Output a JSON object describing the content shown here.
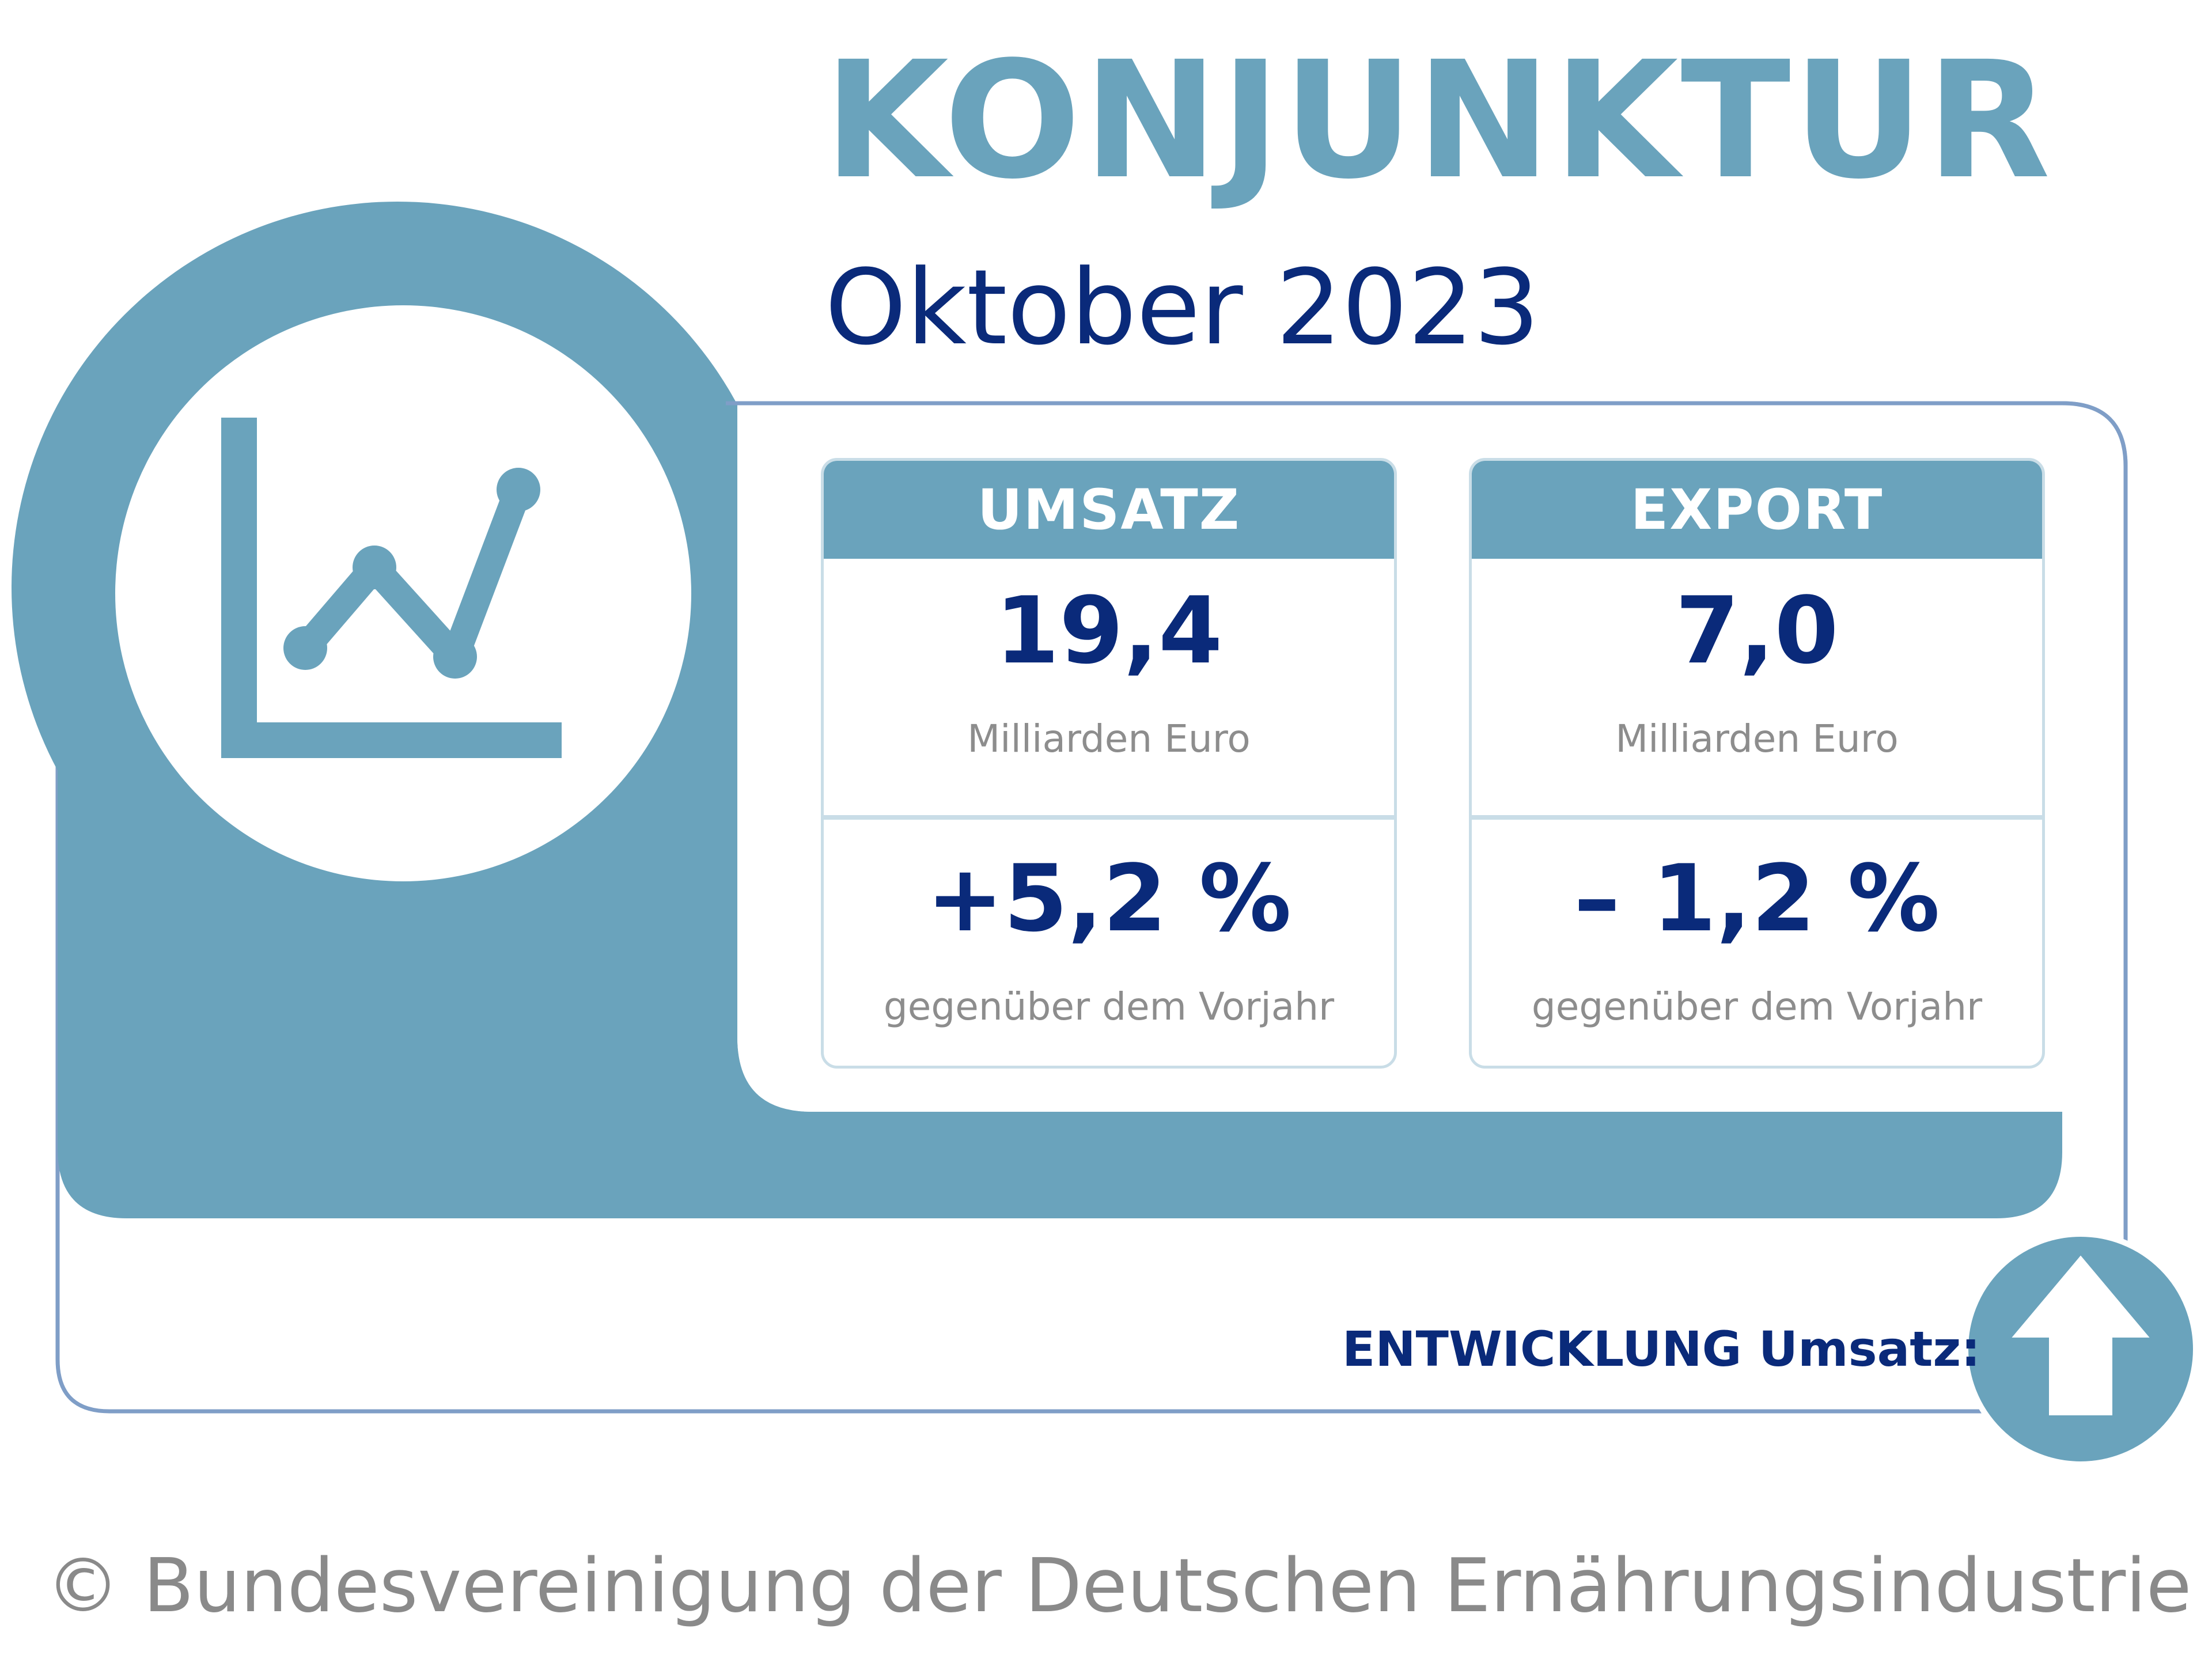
{
  "header": {
    "title": "KONJUNKTUR",
    "subtitle": "Oktober 2023"
  },
  "colors": {
    "accent_blue": "#6aa3bc",
    "dark_navy": "#0a2a7a",
    "light_border": "#c9dde7",
    "text_gray": "#8d8d8d"
  },
  "icons": {
    "chart": "line-chart-icon",
    "arrow": "arrow-up-icon"
  },
  "cards": [
    {
      "header": "UMSATZ",
      "value": "19,4",
      "unit": "Milliarden Euro",
      "change": "+5,2 %",
      "change_label": "gegenüber dem Vorjahr"
    },
    {
      "header": "EXPORT",
      "value": "7,0",
      "unit": "Milliarden Euro",
      "change": "– 1,2 %",
      "change_label": "gegenüber dem Vorjahr"
    }
  ],
  "trend": {
    "label": "ENTWICKLUNG Umsatz:",
    "direction": "up"
  },
  "footer": {
    "copyright": "© Bundesvereinigung der Deutschen Ernährungsindustrie e. V."
  }
}
